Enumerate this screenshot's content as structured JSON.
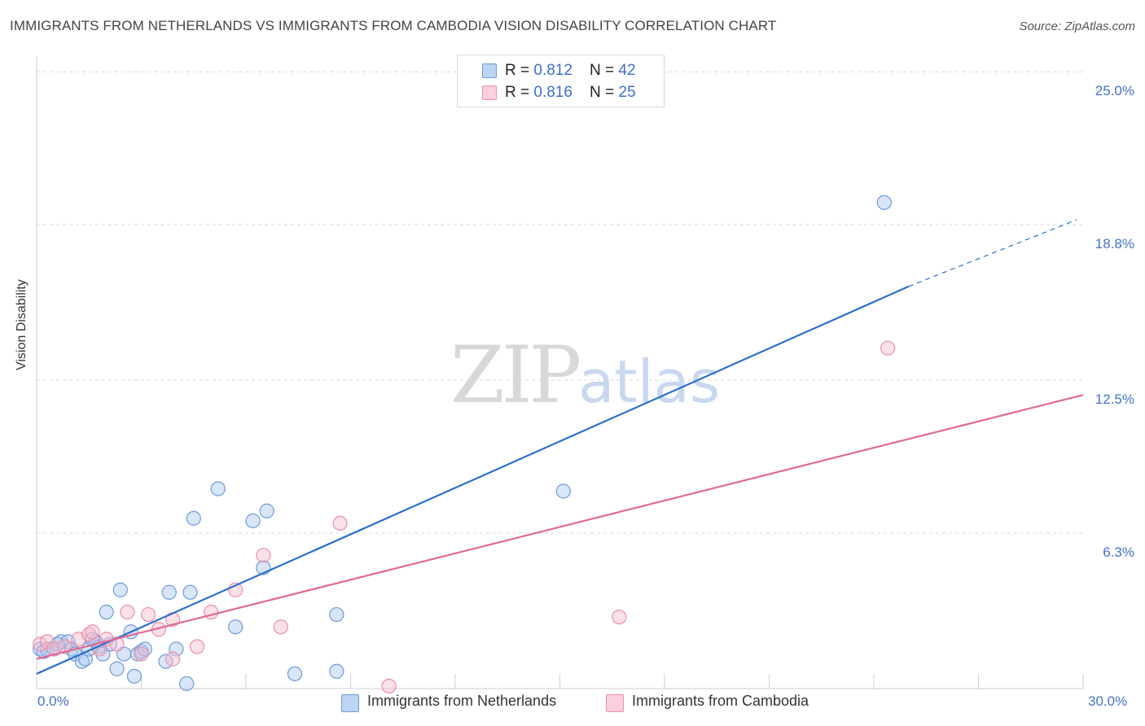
{
  "title": "IMMIGRANTS FROM NETHERLANDS VS IMMIGRANTS FROM CAMBODIA VISION DISABILITY CORRELATION CHART",
  "source": "Source: ZipAtlas.com",
  "watermark": {
    "zip": "ZIP",
    "atlas": "atlas"
  },
  "legend": {
    "rows": [
      {
        "r_label": "R = ",
        "r_value": "0.812",
        "n_label": "N = ",
        "n_value": "42"
      },
      {
        "r_label": "R = ",
        "r_value": "0.816",
        "n_label": "N = ",
        "n_value": "25"
      }
    ]
  },
  "colors": {
    "netherlands_fill": "#a9c7ef",
    "netherlands_stroke": "#6f9ad8",
    "netherlands_line": "#2b6fcc",
    "cambodia_fill": "#f7bccd",
    "cambodia_stroke": "#e98faa",
    "cambodia_line": "#e06a93",
    "axis_label": "#4472c4",
    "grid": "#d9d9d9"
  },
  "chart_data": {
    "type": "scatter",
    "title": "IMMIGRANTS FROM NETHERLANDS VS IMMIGRANTS FROM CAMBODIA VISION DISABILITY CORRELATION CHART",
    "xlabel": "",
    "ylabel": "Vision Disability",
    "xlim": [
      0,
      30
    ],
    "ylim": [
      0,
      25.6
    ],
    "x_tick_labels": [
      "0.0%",
      "30.0%"
    ],
    "y_tick_values": [
      6.3,
      12.5,
      18.8,
      25.0
    ],
    "y_tick_labels": [
      "6.3%",
      "12.5%",
      "18.8%",
      "25.0%"
    ],
    "grid": true,
    "legend_position": "top-center",
    "series": [
      {
        "name": "Immigrants from Netherlands",
        "R": 0.812,
        "N": 42,
        "trend": {
          "x": [
            0.0,
            25.0
          ],
          "y": [
            0.6,
            16.3
          ],
          "dashed_extension_to_x": 30.0,
          "dashed_extension_y": 19.0
        },
        "points": [
          [
            0.1,
            1.6
          ],
          [
            0.3,
            1.6
          ],
          [
            0.5,
            1.6
          ],
          [
            0.7,
            1.9
          ],
          [
            0.9,
            1.9
          ],
          [
            1.0,
            1.6
          ],
          [
            1.1,
            1.4
          ],
          [
            1.3,
            1.1
          ],
          [
            1.4,
            1.2
          ],
          [
            1.5,
            1.6
          ],
          [
            1.7,
            1.9
          ],
          [
            1.8,
            1.7
          ],
          [
            1.9,
            1.4
          ],
          [
            2.0,
            3.1
          ],
          [
            2.1,
            1.8
          ],
          [
            2.3,
            0.8
          ],
          [
            2.4,
            4.0
          ],
          [
            2.5,
            1.4
          ],
          [
            2.7,
            2.3
          ],
          [
            2.8,
            0.5
          ],
          [
            2.9,
            1.4
          ],
          [
            3.0,
            1.5
          ],
          [
            3.8,
            3.9
          ],
          [
            3.7,
            1.1
          ],
          [
            4.0,
            1.6
          ],
          [
            4.3,
            0.2
          ],
          [
            4.4,
            3.9
          ],
          [
            4.5,
            6.9
          ],
          [
            5.2,
            8.1
          ],
          [
            5.7,
            2.5
          ],
          [
            6.2,
            6.8
          ],
          [
            6.5,
            4.9
          ],
          [
            6.6,
            7.2
          ],
          [
            7.4,
            0.6
          ],
          [
            8.6,
            3.0
          ],
          [
            8.6,
            0.7
          ],
          [
            15.1,
            8.0
          ],
          [
            24.3,
            19.7
          ],
          [
            0.2,
            1.5
          ],
          [
            0.6,
            1.8
          ],
          [
            1.6,
            2.0
          ],
          [
            3.1,
            1.6
          ]
        ]
      },
      {
        "name": "Immigrants from Cambodia",
        "R": 0.816,
        "N": 25,
        "trend": {
          "x": [
            0.0,
            30.0
          ],
          "y": [
            1.2,
            11.9
          ]
        },
        "points": [
          [
            0.1,
            1.8
          ],
          [
            0.3,
            1.9
          ],
          [
            0.5,
            1.6
          ],
          [
            0.8,
            1.7
          ],
          [
            1.2,
            2.0
          ],
          [
            1.5,
            2.2
          ],
          [
            1.6,
            2.3
          ],
          [
            1.8,
            1.6
          ],
          [
            2.0,
            2.0
          ],
          [
            2.3,
            1.8
          ],
          [
            2.6,
            3.1
          ],
          [
            3.0,
            1.4
          ],
          [
            3.2,
            3.0
          ],
          [
            3.5,
            2.4
          ],
          [
            3.9,
            2.8
          ],
          [
            3.9,
            1.2
          ],
          [
            4.6,
            1.7
          ],
          [
            5.0,
            3.1
          ],
          [
            5.7,
            4.0
          ],
          [
            6.5,
            5.4
          ],
          [
            7.0,
            2.5
          ],
          [
            8.7,
            6.7
          ],
          [
            10.1,
            0.1
          ],
          [
            16.7,
            2.9
          ],
          [
            24.4,
            13.8
          ]
        ]
      }
    ]
  },
  "bottom_legend": [
    {
      "label": "Immigrants from Netherlands"
    },
    {
      "label": "Immigrants from Cambodia"
    }
  ]
}
